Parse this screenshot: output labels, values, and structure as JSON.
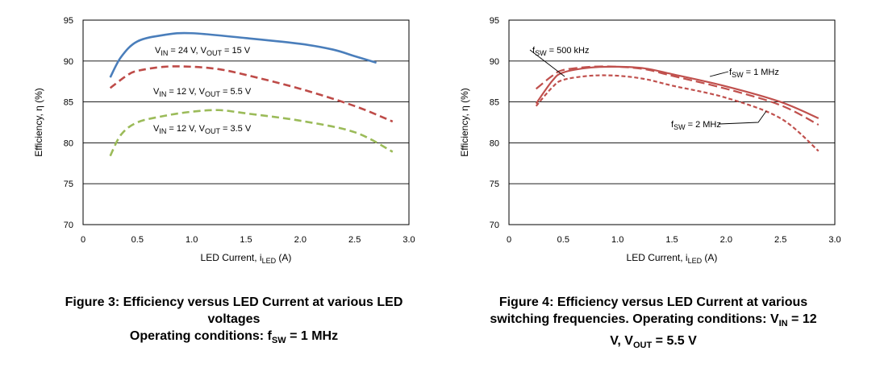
{
  "chart_data": [
    {
      "type": "line",
      "xlabel": "LED Current, i_LED (A)",
      "ylabel": "Efficiency, η (%)",
      "xlim": [
        0,
        3.0
      ],
      "ylim": [
        70,
        95
      ],
      "x_ticks": [
        "0",
        "0.5",
        "1.0",
        "1.5",
        "2.0",
        "2.5",
        "3.0"
      ],
      "y_ticks": [
        "70",
        "75",
        "80",
        "85",
        "90",
        "95"
      ],
      "grid": "horizontal",
      "series": [
        {
          "name": "V_IN = 24 V, V_OUT = 15 V",
          "color": "#4a7ebb",
          "dash": "solid",
          "x": [
            0.25,
            0.35,
            0.5,
            0.75,
            1.0,
            1.5,
            2.0,
            2.3,
            2.5,
            2.7
          ],
          "y": [
            88.0,
            90.5,
            92.4,
            93.2,
            93.4,
            92.8,
            92.1,
            91.4,
            90.6,
            89.8
          ]
        },
        {
          "name": "V_IN = 12 V, V_OUT = 5.5 V",
          "color": "#be4b48",
          "dash": "dashed",
          "x": [
            0.25,
            0.4,
            0.5,
            0.75,
            1.0,
            1.25,
            1.5,
            2.0,
            2.5,
            2.85
          ],
          "y": [
            86.7,
            88.2,
            88.8,
            89.3,
            89.3,
            89.0,
            88.3,
            86.6,
            84.5,
            82.6
          ]
        },
        {
          "name": "V_IN = 12 V, V_OUT = 3.5 V",
          "color": "#9bbb59",
          "dash": "dashed",
          "x": [
            0.25,
            0.35,
            0.5,
            0.75,
            1.0,
            1.25,
            1.5,
            2.0,
            2.5,
            2.85
          ],
          "y": [
            78.4,
            81.0,
            82.5,
            83.3,
            83.8,
            84.0,
            83.6,
            82.7,
            81.3,
            78.9
          ]
        }
      ],
      "annotations": [
        {
          "main": "V",
          "sub": "IN",
          "rest": " = 24 V, V",
          "sub2": "OUT",
          "rest2": " = 15 V"
        },
        {
          "main": "V",
          "sub": "IN",
          "rest": " = 12 V, V",
          "sub2": "OUT",
          "rest2": " = 5.5 V"
        },
        {
          "main": "V",
          "sub": "IN",
          "rest": " = 12 V, V",
          "sub2": "OUT",
          "rest2": " = 3.5 V"
        }
      ]
    },
    {
      "type": "line",
      "xlabel": "LED Current, i_LED (A)",
      "ylabel": "Efficiency, η (%)",
      "xlim": [
        0,
        3.0
      ],
      "ylim": [
        70,
        95
      ],
      "x_ticks": [
        "0",
        "0.5",
        "1.0",
        "1.5",
        "2.0",
        "2.5",
        "3.0"
      ],
      "y_ticks": [
        "70",
        "75",
        "80",
        "85",
        "90",
        "95"
      ],
      "grid": "horizontal",
      "series": [
        {
          "name": "f_SW = 500 kHz",
          "color": "#c0504d",
          "dash": "longdash",
          "x": [
            0.25,
            0.4,
            0.5,
            0.75,
            1.0,
            1.25,
            1.5,
            2.0,
            2.5,
            2.85
          ],
          "y": [
            86.6,
            88.2,
            88.9,
            89.3,
            89.3,
            89.0,
            88.2,
            86.6,
            84.6,
            82.2
          ]
        },
        {
          "name": "f_SW = 1 MHz",
          "color": "#c0504d",
          "dash": "solid",
          "x": [
            0.25,
            0.4,
            0.5,
            0.75,
            1.0,
            1.25,
            1.5,
            2.0,
            2.5,
            2.85
          ],
          "y": [
            84.8,
            87.6,
            88.6,
            89.2,
            89.3,
            89.1,
            88.4,
            86.9,
            85.0,
            83.0
          ]
        },
        {
          "name": "f_SW = 2 MHz",
          "color": "#c0504d",
          "dash": "shortdash",
          "x": [
            0.25,
            0.4,
            0.5,
            0.75,
            1.0,
            1.25,
            1.5,
            2.0,
            2.5,
            2.85
          ],
          "y": [
            84.5,
            86.8,
            87.7,
            88.2,
            88.2,
            87.8,
            87.0,
            85.5,
            83.0,
            79.0
          ]
        }
      ],
      "annotations": [
        {
          "main": "f",
          "sub": "SW",
          "rest": " = 500 kHz"
        },
        {
          "main": "f",
          "sub": "SW",
          "rest": " = 1 MHz"
        },
        {
          "main": "f",
          "sub": "SW",
          "rest": " = 2 MHz"
        }
      ]
    }
  ],
  "captions": {
    "fig3_line1": "Figure 3: Efficiency versus LED Current at various LED",
    "fig3_line2": "voltages",
    "fig3_line3_main": "Operating conditions: f",
    "fig3_line3_sub": "SW",
    "fig3_line3_rest": " = 1 MHz",
    "fig4_line1": "Figure 4: Efficiency versus LED Current at various",
    "fig4_line2_main": "switching frequencies. Operating conditions: V",
    "fig4_line2_sub": "IN",
    "fig4_line2_rest": " = 12",
    "fig4_line3_main": "V, V",
    "fig4_line3_sub": "OUT",
    "fig4_line3_rest": " = 5.5 V"
  },
  "axis_text": {
    "xlabel_main": "LED Current, i",
    "xlabel_sub": "LED",
    "xlabel_rest": " (A)",
    "ylabel": "Efficiency, η (%)"
  }
}
